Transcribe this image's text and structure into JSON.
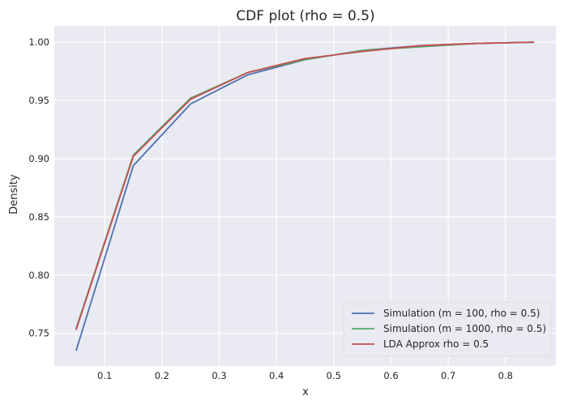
{
  "chart_data": {
    "type": "line",
    "title": "CDF plot (rho = 0.5)",
    "xlabel": "x",
    "ylabel": "Density",
    "xlim": [
      0.012,
      0.888
    ],
    "ylim": [
      0.722,
      1.014
    ],
    "xticks": [
      0.1,
      0.2,
      0.3,
      0.4,
      0.5,
      0.6,
      0.7,
      0.8
    ],
    "xtick_labels": [
      "0.1",
      "0.2",
      "0.3",
      "0.4",
      "0.5",
      "0.6",
      "0.7",
      "0.8"
    ],
    "yticks": [
      0.75,
      0.8,
      0.85,
      0.9,
      0.95,
      1.0
    ],
    "ytick_labels": [
      "0.75",
      "0.80",
      "0.85",
      "0.90",
      "0.95",
      "1.00"
    ],
    "grid": true,
    "legend_position": "lower-right",
    "x": [
      0.05,
      0.15,
      0.25,
      0.35,
      0.45,
      0.55,
      0.65,
      0.75,
      0.85
    ],
    "series": [
      {
        "name": "Simulation (m = 100, rho = 0.5)",
        "color": "#4c72b0",
        "values": [
          0.735,
          0.894,
          0.947,
          0.972,
          0.985,
          0.993,
          0.997,
          0.999,
          1.0
        ]
      },
      {
        "name": "Simulation (m = 1000, rho = 0.5)",
        "color": "#55a868",
        "values": [
          0.754,
          0.903,
          0.952,
          0.974,
          0.985,
          0.993,
          0.996,
          0.999,
          1.0
        ]
      },
      {
        "name": "LDA Approx rho = 0.5",
        "color": "#c44e52",
        "values": [
          0.753,
          0.902,
          0.951,
          0.974,
          0.986,
          0.992,
          0.997,
          0.999,
          1.0
        ]
      }
    ]
  }
}
